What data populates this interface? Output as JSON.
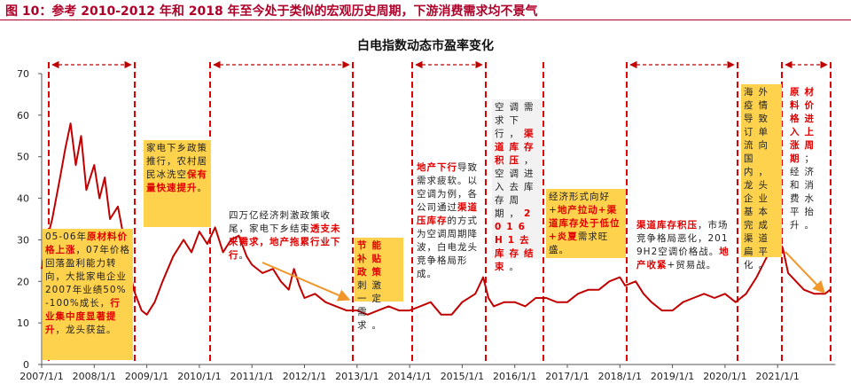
{
  "chart_data": {
    "type": "line",
    "figure_title": "图 10：参考 2010-2012 年和 2018 年至今处于类似的宏观历史周期，下游消费需求均不景气",
    "title": "白电指数动态市盈率变化",
    "xlim": [
      2007,
      2022.1
    ],
    "xticks": [
      {
        "value": 2007,
        "label": "2007/1/1"
      },
      {
        "value": 2008,
        "label": "2008/1/1"
      },
      {
        "value": 2009,
        "label": "2009/1/1"
      },
      {
        "value": 2010,
        "label": "2010/1/1"
      },
      {
        "value": 2011,
        "label": "2011/1/1"
      },
      {
        "value": 2012,
        "label": "2012/1/1"
      },
      {
        "value": 2013,
        "label": "2013/1/1"
      },
      {
        "value": 2014,
        "label": "2014/1/1"
      },
      {
        "value": 2015,
        "label": "2015/1/1"
      },
      {
        "value": 2016,
        "label": "2016/1/1"
      },
      {
        "value": 2017,
        "label": "2017/1/1"
      },
      {
        "value": 2018,
        "label": "2018/1/1"
      },
      {
        "value": 2019,
        "label": "2019/1/1"
      },
      {
        "value": 2020,
        "label": "2020/1/1"
      },
      {
        "value": 2021,
        "label": "2021/1/1"
      }
    ],
    "ylim": [
      0,
      70
    ],
    "yticks": [
      0,
      10,
      20,
      30,
      40,
      50,
      60,
      70
    ],
    "grid": false,
    "series": [
      {
        "name": "白电指数动态市盈率",
        "color": "#c00000",
        "x": [
          2007.0,
          2007.1,
          2007.2,
          2007.35,
          2007.45,
          2007.55,
          2007.65,
          2007.75,
          2007.85,
          2008.0,
          2008.1,
          2008.2,
          2008.3,
          2008.45,
          2008.6,
          2008.75,
          2008.9,
          2009.0,
          2009.15,
          2009.3,
          2009.5,
          2009.7,
          2009.85,
          2010.0,
          2010.15,
          2010.3,
          2010.45,
          2010.6,
          2010.75,
          2010.9,
          2011.0,
          2011.2,
          2011.4,
          2011.55,
          2011.7,
          2011.8,
          2011.9,
          2012.0,
          2012.2,
          2012.4,
          2012.6,
          2012.8,
          2013.0,
          2013.2,
          2013.4,
          2013.6,
          2013.8,
          2014.0,
          2014.2,
          2014.4,
          2014.6,
          2014.8,
          2015.0,
          2015.25,
          2015.4,
          2015.5,
          2015.6,
          2015.8,
          2016.0,
          2016.2,
          2016.4,
          2016.6,
          2016.8,
          2017.0,
          2017.2,
          2017.4,
          2017.6,
          2017.8,
          2018.0,
          2018.1,
          2018.3,
          2018.45,
          2018.6,
          2018.8,
          2019.0,
          2019.2,
          2019.4,
          2019.6,
          2019.8,
          2020.0,
          2020.2,
          2020.4,
          2020.6,
          2020.8,
          2021.0,
          2021.1,
          2021.2,
          2021.35,
          2021.5,
          2021.7,
          2021.9,
          2022.0
        ],
        "values": [
          23,
          30,
          35,
          45,
          52,
          58,
          48,
          55,
          42,
          48,
          40,
          45,
          35,
          38,
          28,
          18,
          13,
          12,
          15,
          20,
          26,
          30,
          27,
          32,
          29,
          33,
          27,
          30,
          31,
          26,
          24,
          22,
          23,
          20,
          18,
          23,
          19,
          16,
          17,
          15,
          14,
          13,
          13,
          12,
          13,
          14,
          13,
          13,
          14,
          15,
          12,
          12,
          15,
          17,
          21,
          16,
          14,
          15,
          15,
          14,
          16,
          16,
          15,
          15,
          17,
          18,
          18,
          20,
          21,
          19,
          20,
          17,
          15,
          13,
          13,
          15,
          16,
          17,
          16,
          17,
          15,
          17,
          21,
          26,
          30,
          28,
          22,
          20,
          18,
          17,
          17,
          18
        ]
      }
    ],
    "annotations": [
      {
        "parts": [
          {
            "text": "05-06年",
            "highlight": false
          },
          {
            "text": "原材料价格上涨",
            "highlight": true
          },
          {
            "text": "，07年价格回落盈利能力转向，大批家电企业2007年业绩50%-100%成长，",
            "highlight": false
          },
          {
            "text": "行业集中度显著提升",
            "highlight": true
          },
          {
            "text": "，龙头获益。",
            "highlight": false
          }
        ]
      },
      {
        "parts": [
          {
            "text": "家电下乡政策推行，农村居民冰洗空",
            "highlight": false
          },
          {
            "text": "保有量快速提升",
            "highlight": true
          },
          {
            "text": "。",
            "highlight": false
          }
        ]
      },
      {
        "parts": [
          {
            "text": "四万亿经济刺激政策收尾，家电下乡结束",
            "highlight": false
          },
          {
            "text": "透支未来需求，地产拖累行业下行",
            "highlight": true
          },
          {
            "text": "。",
            "highlight": false
          }
        ]
      },
      {
        "parts": [
          {
            "text": "节能补贴政策",
            "highlight": true
          },
          {
            "text": "刺激一定需求。",
            "highlight": false
          }
        ]
      },
      {
        "parts": [
          {
            "text": "地产下行",
            "highlight": true
          },
          {
            "text": "导致需求疲软。以空调为例，各公司通过",
            "highlight": false
          },
          {
            "text": "渠道压库存",
            "highlight": true
          },
          {
            "text": "的方式为空调周期降波，白电龙头竞争格局形成。",
            "highlight": false
          }
        ]
      },
      {
        "parts": [
          {
            "text": "空调需求下行，",
            "highlight": false
          },
          {
            "text": "渠道库存积压",
            "highlight": true
          },
          {
            "text": "，空调进入去库存周期，",
            "highlight": false
          },
          {
            "text": "2016H1去库存结束",
            "highlight": true
          },
          {
            "text": "。",
            "highlight": false
          }
        ]
      },
      {
        "parts": [
          {
            "text": "经济形式向好+",
            "highlight": false
          },
          {
            "text": "地产拉动+渠道库存处于低位+炎夏",
            "highlight": true
          },
          {
            "text": "需求旺盛。",
            "highlight": false
          }
        ]
      },
      {
        "parts": [
          {
            "text": "渠道库存积压",
            "highlight": true
          },
          {
            "text": "，市场竞争格局恶化，2019H2空调价格战。",
            "highlight": false
          },
          {
            "text": "地产收紧",
            "highlight": true
          },
          {
            "text": "+贸易战。",
            "highlight": false
          }
        ]
      },
      {
        "parts": [
          {
            "text": "海外疫情导致订单流向国内，龙头企业基本完成渠道扁平化。",
            "highlight": false
          }
        ]
      },
      {
        "parts": [
          {
            "text": "原材料价格进入上涨周期",
            "highlight": true
          },
          {
            "text": "；经济和消费水平抬升。",
            "highlight": false
          }
        ]
      }
    ]
  }
}
